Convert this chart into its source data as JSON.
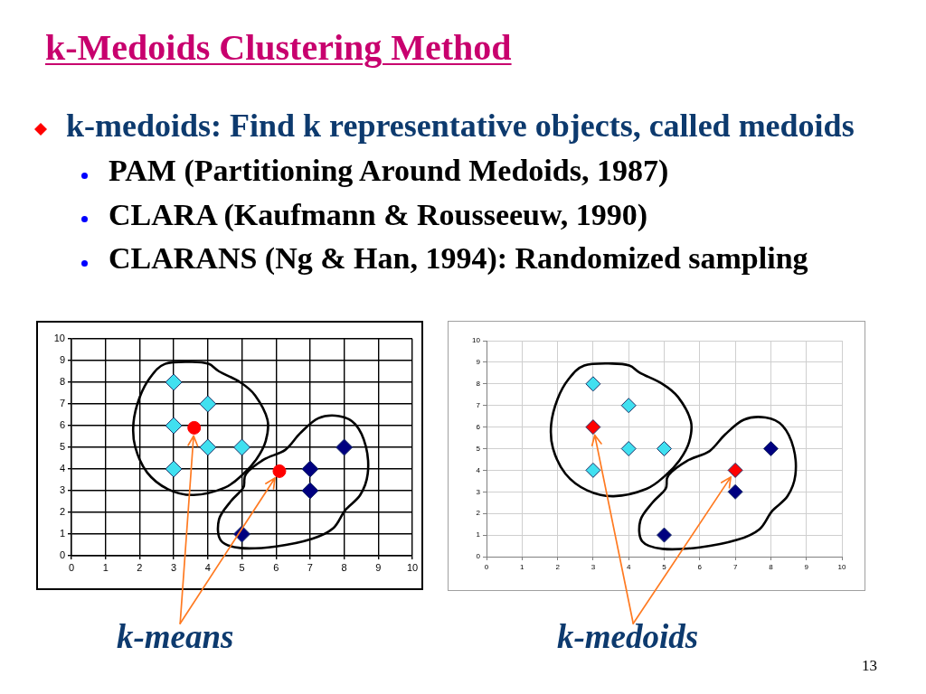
{
  "chart_data": [
    {
      "type": "other",
      "title": "k-Medoids Clustering Method",
      "annotations": [
        "k-medoids: Find k representative objects, called medoids",
        "PAM (Partitioning Around Medoids, 1987)",
        "CLARA (Kaufmann & Rousseeuw, 1990)",
        "CLARANS (Ng & Han, 1994): Randomized sampling"
      ]
    },
    {
      "type": "scatter",
      "marker": "diamond",
      "series": [
        {
          "color": "#40e0f0",
          "x": [
            3,
            4,
            3,
            4,
            5,
            3
          ],
          "values": [
            8,
            7,
            6,
            5,
            5,
            4
          ]
        },
        {
          "color": "#000080",
          "x": [
            8,
            7,
            7,
            5
          ],
          "values": [
            5,
            4,
            3,
            1
          ]
        },
        {
          "color": "#ff0000",
          "marker": "circle",
          "x": [
            3.6,
            6.1
          ],
          "values": [
            5.9,
            3.9
          ]
        }
      ],
      "xlim": [
        0,
        10
      ],
      "ylim": [
        0,
        10
      ],
      "xticks": [
        0,
        1,
        2,
        3,
        4,
        5,
        6,
        7,
        8,
        9,
        10
      ],
      "yticks": [
        0,
        1,
        2,
        3,
        4,
        5,
        6,
        7,
        8,
        9,
        10
      ],
      "grid": true,
      "annotations": [
        "k-means"
      ]
    },
    {
      "type": "scatter",
      "marker": "diamond",
      "series": [
        {
          "color": "#40e0f0",
          "x": [
            3,
            4,
            4,
            5,
            3
          ],
          "values": [
            8,
            7,
            5,
            5,
            4
          ]
        },
        {
          "color": "#000080",
          "x": [
            8,
            7,
            5
          ],
          "values": [
            5,
            3,
            1
          ]
        },
        {
          "color": "#ff0000",
          "x": [
            3,
            7
          ],
          "values": [
            6,
            4
          ]
        }
      ],
      "xlim": [
        0,
        10
      ],
      "ylim": [
        0,
        10
      ],
      "xticks": [
        0,
        1,
        2,
        3,
        4,
        5,
        6,
        7,
        8,
        9,
        10
      ],
      "yticks": [
        0,
        1,
        2,
        3,
        4,
        5,
        6,
        7,
        8,
        9,
        10
      ],
      "grid": true,
      "annotations": [
        "k-medoids",
        "13"
      ]
    }
  ]
}
